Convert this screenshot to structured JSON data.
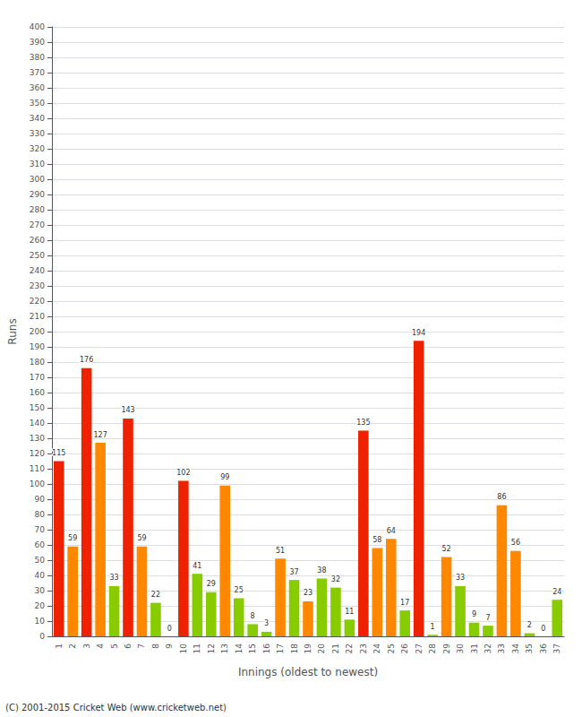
{
  "chart_data": {
    "type": "bar",
    "xlabel": "Innings (oldest to newest)",
    "ylabel": "Runs",
    "annotations": [
      "(C) 2001-2015 Cricket Web (www.cricketweb.net)"
    ],
    "categories": [
      "1",
      "2",
      "3",
      "4",
      "5",
      "6",
      "7",
      "8",
      "9",
      "10",
      "11",
      "12",
      "13",
      "14",
      "15",
      "16",
      "17",
      "18",
      "19",
      "20",
      "21",
      "22",
      "23",
      "24",
      "25",
      "26",
      "27",
      "28",
      "29",
      "30",
      "31",
      "32",
      "33",
      "34",
      "35",
      "36",
      "37"
    ],
    "values": [
      115,
      59,
      176,
      127,
      33,
      143,
      59,
      22,
      0,
      102,
      41,
      29,
      99,
      25,
      8,
      3,
      51,
      37,
      23,
      38,
      32,
      11,
      135,
      58,
      64,
      17,
      194,
      1,
      52,
      33,
      9,
      7,
      86,
      56,
      2,
      0,
      24
    ],
    "colors": [
      "#ee2200",
      "#ff8800",
      "#ee2200",
      "#ff8800",
      "#88cc00",
      "#ee2200",
      "#ff8800",
      "#88cc00",
      "#88cc00",
      "#ee2200",
      "#88cc00",
      "#88cc00",
      "#ff8800",
      "#88cc00",
      "#88cc00",
      "#88cc00",
      "#ff8800",
      "#88cc00",
      "#ff8800",
      "#88cc00",
      "#88cc00",
      "#88cc00",
      "#ee2200",
      "#ff8800",
      "#ff8800",
      "#88cc00",
      "#ee2200",
      "#88cc00",
      "#ff8800",
      "#88cc00",
      "#88cc00",
      "#88cc00",
      "#ff8800",
      "#ff8800",
      "#88cc00",
      "#88cc00",
      "#88cc00"
    ],
    "ylim": [
      0,
      400
    ],
    "yticks": [
      0,
      10,
      20,
      30,
      40,
      50,
      60,
      70,
      80,
      90,
      100,
      110,
      120,
      130,
      140,
      150,
      160,
      170,
      180,
      190,
      200,
      210,
      220,
      230,
      240,
      250,
      260,
      270,
      280,
      290,
      300,
      310,
      320,
      330,
      340,
      350,
      360,
      370,
      380,
      390,
      400
    ],
    "grid": true,
    "data_labels": true
  }
}
